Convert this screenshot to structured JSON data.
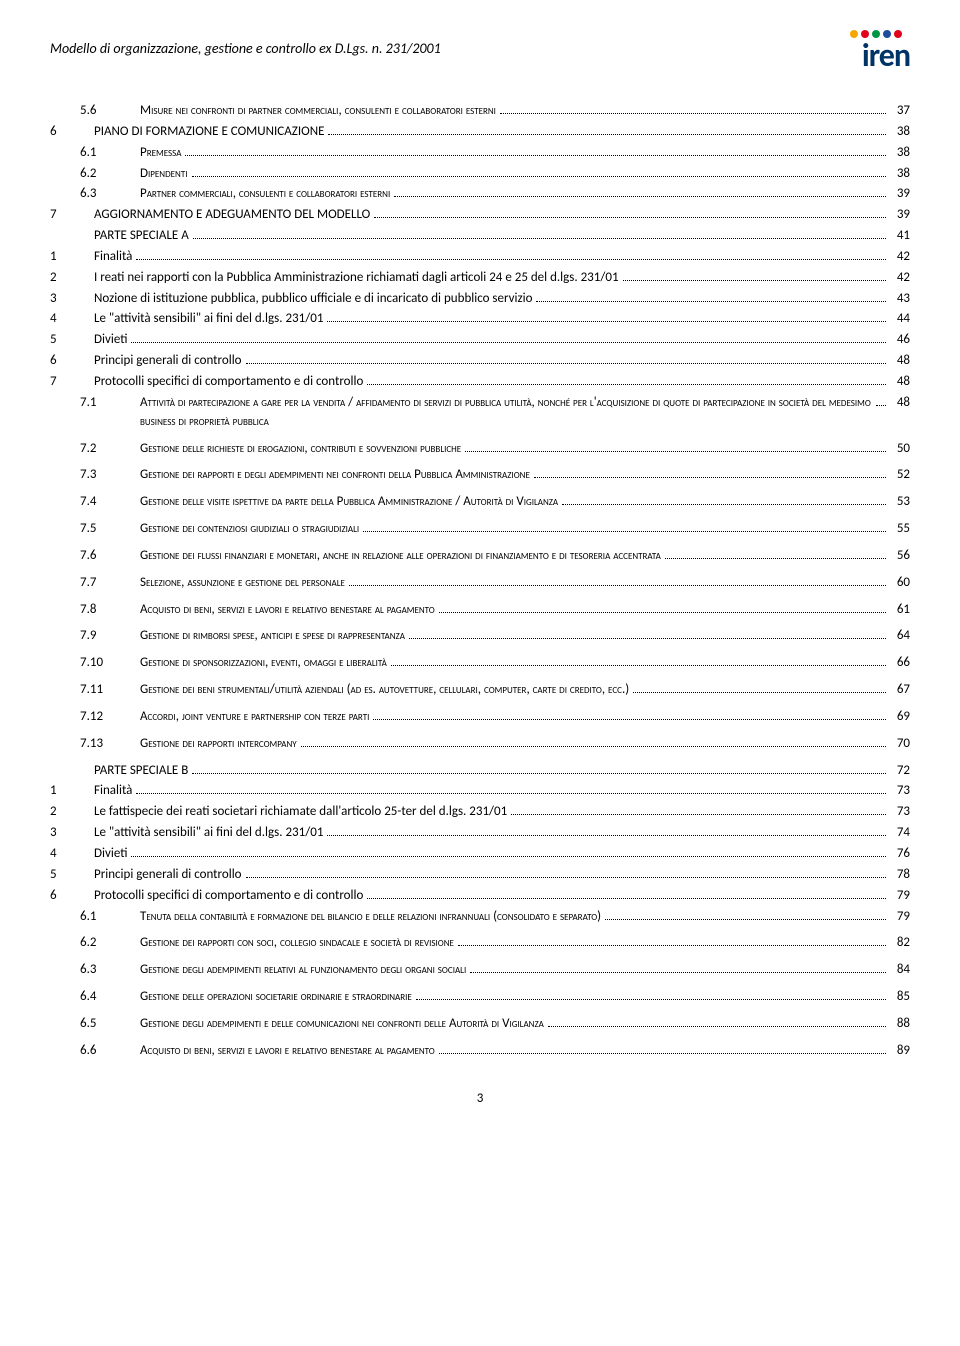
{
  "header": {
    "title": "Modello di organizzazione, gestione e controllo ex D.Lgs. n. 231/2001",
    "logo_text": "iren",
    "logo_dot_colors": [
      "#f7a600",
      "#e2001a",
      "#009640",
      "#1d4e9e",
      "#e2001a"
    ]
  },
  "toc": [
    {
      "num": "5.6",
      "title": "Misure nei confronti di partner commerciali, consulenti e collaboratori esterni",
      "page": "37",
      "sc": true,
      "sub": true,
      "sp": false
    },
    {
      "num": "6",
      "title": "PIANO DI FORMAZIONE E COMUNICAZIONE",
      "page": "38",
      "sc": false,
      "sub": false,
      "sp": false
    },
    {
      "num": "6.1",
      "title": "Premessa",
      "page": "38",
      "sc": true,
      "sub": true,
      "sp": false
    },
    {
      "num": "6.2",
      "title": "Dipendenti",
      "page": "38",
      "sc": true,
      "sub": true,
      "sp": false
    },
    {
      "num": "6.3",
      "title": "Partner commerciali, consulenti e collaboratori esterni",
      "page": "39",
      "sc": true,
      "sub": true,
      "sp": false
    },
    {
      "num": "7",
      "title": "AGGIORNAMENTO E ADEGUAMENTO DEL MODELLO",
      "page": "39",
      "sc": false,
      "sub": false,
      "sp": false
    },
    {
      "num": "",
      "title": "PARTE SPECIALE A",
      "page": "41",
      "sc": false,
      "sub": false,
      "sp": false
    },
    {
      "num": "1",
      "title": "Finalità",
      "page": "42",
      "sc": false,
      "sub": false,
      "sp": false
    },
    {
      "num": "2",
      "title": "I reati nei rapporti con la Pubblica Amministrazione richiamati dagli articoli 24 e 25 del d.lgs. 231/01",
      "page": "42",
      "sc": false,
      "sub": false,
      "sp": false
    },
    {
      "num": "3",
      "title": "Nozione di istituzione pubblica, pubblico ufficiale e di incaricato di pubblico servizio",
      "page": "43",
      "sc": false,
      "sub": false,
      "sp": false
    },
    {
      "num": "4",
      "title": "Le \"attività sensibili\" ai fini del d.lgs. 231/01",
      "page": "44",
      "sc": false,
      "sub": false,
      "sp": false
    },
    {
      "num": "5",
      "title": "Divieti",
      "page": "46",
      "sc": false,
      "sub": false,
      "sp": false
    },
    {
      "num": "6",
      "title": "Principi generali di controllo",
      "page": "48",
      "sc": false,
      "sub": false,
      "sp": false
    },
    {
      "num": "7",
      "title": "Protocolli specifici di comportamento e di controllo",
      "page": "48",
      "sc": false,
      "sub": false,
      "sp": false
    },
    {
      "num": "7.1",
      "title": "Attività di partecipazione a gare per la vendita / affidamento di servizi di pubblica utilità, nonché per l'acquisizione di quote di partecipazione in società del medesimo business di proprietà pubblica",
      "page": "48",
      "sc": true,
      "sub": true,
      "sp": false
    },
    {
      "num": "7.2",
      "title": "Gestione delle richieste di erogazioni, contributi e sovvenzioni pubbliche",
      "page": "50",
      "sc": true,
      "sub": true,
      "sp": true
    },
    {
      "num": "7.3",
      "title": "Gestione dei rapporti e degli adempimenti nei confronti della Pubblica Amministrazione",
      "page": "52",
      "sc": true,
      "sub": true,
      "sp": true
    },
    {
      "num": "7.4",
      "title": "Gestione delle visite ispettive da parte della Pubblica Amministrazione / Autorità di Vigilanza",
      "page": "53",
      "sc": true,
      "sub": true,
      "sp": true
    },
    {
      "num": "7.5",
      "title": "Gestione dei contenziosi giudiziali o stragiudiziali",
      "page": "55",
      "sc": true,
      "sub": true,
      "sp": true
    },
    {
      "num": "7.6",
      "title": "Gestione dei flussi finanziari e monetari, anche in relazione alle operazioni di finanziamento e di tesoreria accentrata",
      "page": "56",
      "sc": true,
      "sub": true,
      "sp": true
    },
    {
      "num": "7.7",
      "title": "Selezione, assunzione e gestione del personale",
      "page": "60",
      "sc": true,
      "sub": true,
      "sp": true
    },
    {
      "num": "7.8",
      "title": "Acquisto di beni, servizi e lavori e relativo benestare al pagamento",
      "page": "61",
      "sc": true,
      "sub": true,
      "sp": true
    },
    {
      "num": "7.9",
      "title": "Gestione di rimborsi spese, anticipi e spese di rappresentanza",
      "page": "64",
      "sc": true,
      "sub": true,
      "sp": true
    },
    {
      "num": "7.10",
      "title": "Gestione di sponsorizzazioni, eventi, omaggi e liberalità",
      "page": "66",
      "sc": true,
      "sub": true,
      "sp": true
    },
    {
      "num": "7.11",
      "title": "Gestione dei beni strumentali/utilità aziendali (ad es. autovetture, cellulari, computer, carte di credito, ecc.)",
      "page": "67",
      "sc": true,
      "sub": true,
      "sp": true
    },
    {
      "num": "7.12",
      "title": "Accordi, joint venture e partnership con terze parti",
      "page": "69",
      "sc": true,
      "sub": true,
      "sp": true
    },
    {
      "num": "7.13",
      "title": "Gestione dei rapporti intercompany",
      "page": "70",
      "sc": true,
      "sub": true,
      "sp": true
    },
    {
      "num": "",
      "title": "PARTE SPECIALE B",
      "page": "72",
      "sc": false,
      "sub": false,
      "sp": true
    },
    {
      "num": "1",
      "title": "Finalità",
      "page": "73",
      "sc": false,
      "sub": false,
      "sp": false
    },
    {
      "num": "2",
      "title": "Le fattispecie dei reati societari richiamate dall'articolo 25-ter del d.lgs. 231/01",
      "page": "73",
      "sc": false,
      "sub": false,
      "sp": false
    },
    {
      "num": "3",
      "title": "Le \"attività sensibili\" ai fini del d.lgs. 231/01",
      "page": "74",
      "sc": false,
      "sub": false,
      "sp": false
    },
    {
      "num": "4",
      "title": "Divieti",
      "page": "76",
      "sc": false,
      "sub": false,
      "sp": false
    },
    {
      "num": "5",
      "title": "Principi generali di controllo",
      "page": "78",
      "sc": false,
      "sub": false,
      "sp": false
    },
    {
      "num": "6",
      "title": "Protocolli specifici di comportamento e di controllo",
      "page": "79",
      "sc": false,
      "sub": false,
      "sp": false
    },
    {
      "num": "6.1",
      "title": "Tenuta della contabilità e formazione del bilancio e delle relazioni infrannuali (consolidato e separato)",
      "page": "79",
      "sc": true,
      "sub": true,
      "sp": false
    },
    {
      "num": "6.2",
      "title": "Gestione dei rapporti con soci, collegio sindacale e società di revisione",
      "page": "82",
      "sc": true,
      "sub": true,
      "sp": true
    },
    {
      "num": "6.3",
      "title": "Gestione degli adempimenti relativi al funzionamento degli organi sociali",
      "page": "84",
      "sc": true,
      "sub": true,
      "sp": true
    },
    {
      "num": "6.4",
      "title": "Gestione delle operazioni societarie ordinarie e straordinarie",
      "page": "85",
      "sc": true,
      "sub": true,
      "sp": true
    },
    {
      "num": "6.5",
      "title": "Gestione degli adempimenti e delle comunicazioni nei confronti delle Autorità di Vigilanza",
      "page": "88",
      "sc": true,
      "sub": true,
      "sp": true
    },
    {
      "num": "6.6",
      "title": "Acquisto di beni, servizi e lavori e relativo benestare al pagamento",
      "page": "89",
      "sc": true,
      "sub": true,
      "sp": true
    }
  ],
  "footer": {
    "page_number": "3"
  }
}
